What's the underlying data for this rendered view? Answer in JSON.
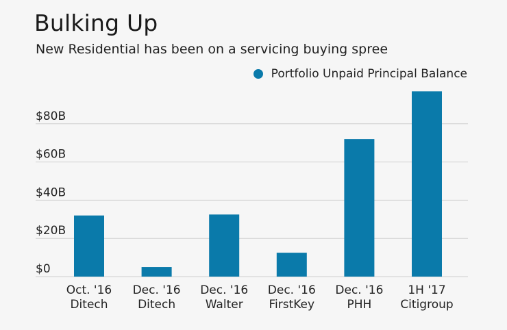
{
  "title": "Bulking Up",
  "subtitle": "New Residential has been on a servicing buying spree",
  "colors": {
    "bar": "#0a7aaa",
    "grid": "#cfcfcf",
    "background": "#f6f6f6"
  },
  "chart_data": {
    "type": "bar",
    "categories": [
      [
        "Oct. '16",
        "Ditech"
      ],
      [
        "Dec. '16",
        "Ditech"
      ],
      [
        "Dec. '16",
        "Walter"
      ],
      [
        "Dec. '16",
        "FirstKey"
      ],
      [
        "Dec. '16",
        "PHH"
      ],
      [
        "1H '17",
        "Citigroup"
      ]
    ],
    "series": [
      {
        "name": "Portfolio Unpaid Principal Balance",
        "values": [
          32,
          5,
          32.5,
          12.5,
          72,
          97
        ]
      }
    ],
    "yticks": [
      0,
      20,
      40,
      60,
      80
    ],
    "ytick_labels": [
      "$0",
      "$20B",
      "$40B",
      "$60B",
      "$80B"
    ],
    "ylim": [
      0,
      97
    ],
    "grid": true,
    "legend_position": "top-right"
  }
}
